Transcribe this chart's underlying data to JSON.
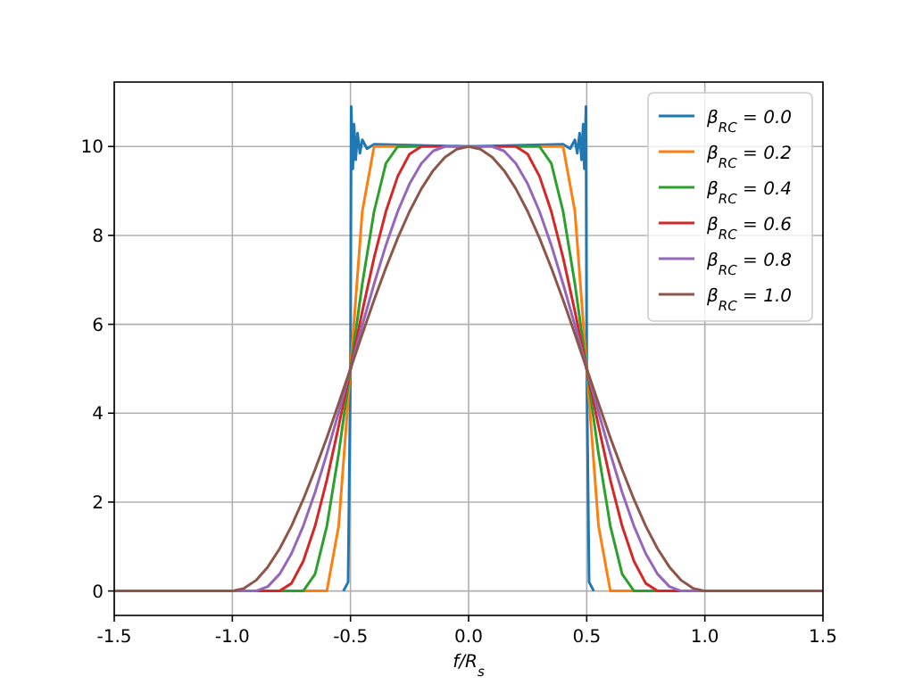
{
  "chart_data": {
    "type": "line",
    "xlabel": "f/R$_{s}$",
    "xlim": [
      -1.5,
      1.5
    ],
    "ylim": [
      -0.55,
      11.45
    ],
    "xticks": [
      -1.5,
      {
        "value": -1,
        "label": "-1.0"
      },
      -0.5,
      {
        "value": 0,
        "label": "0.0"
      },
      0.5,
      {
        "value": 1,
        "label": "1.0"
      },
      1.5
    ],
    "yticks": [
      0,
      2,
      4,
      6,
      8,
      10
    ],
    "grid": true,
    "legend": "top right",
    "line_style": "solid",
    "marker": "none",
    "x": [
      -1.5,
      -1.0,
      -0.95,
      -0.9,
      -0.85,
      -0.8,
      -0.75,
      -0.7,
      -0.65,
      -0.6,
      -0.55,
      -0.5,
      -0.45,
      -0.4,
      -0.35,
      -0.3,
      -0.25,
      -0.2,
      -0.15,
      -0.1,
      -0.05,
      0,
      0.05,
      0.1,
      0.15,
      0.2,
      0.25,
      0.3,
      0.35,
      0.4,
      0.45,
      0.5,
      0.55,
      0.6,
      0.65,
      0.7,
      0.75,
      0.8,
      0.85,
      0.9,
      0.95,
      1.0,
      1.5
    ],
    "series": [
      {
        "name": "β$_{RC}$ = 0.0",
        "color": "#1f77b4",
        "x": [
          -0.53,
          -0.51,
          -0.5,
          -0.497,
          -0.49,
          -0.485,
          -0.478,
          -0.47,
          -0.46,
          -0.45,
          -0.43,
          -0.4,
          0,
          0.4,
          0.43,
          0.45,
          0.46,
          0.47,
          0.478,
          0.485,
          0.49,
          0.497,
          0.5,
          0.51,
          0.53
        ],
        "values": [
          0,
          0.2,
          5,
          10.9,
          9.5,
          10.5,
          9.7,
          10.3,
          9.85,
          10.15,
          9.95,
          10.05,
          10,
          10.05,
          9.95,
          10.15,
          9.85,
          10.3,
          9.7,
          10.5,
          9.5,
          10.9,
          5,
          0.2,
          0
        ]
      },
      {
        "name": "β$_{RC}$ = 0.2",
        "color": "#ff7f0e",
        "values": [
          null,
          null,
          null,
          null,
          null,
          null,
          null,
          0,
          0,
          0,
          1.46,
          5,
          8.54,
          10,
          10,
          10,
          10,
          null,
          null,
          null,
          null,
          null,
          null,
          null,
          null,
          null,
          null,
          10,
          10,
          10,
          8.54,
          5,
          1.46,
          0,
          0,
          0,
          null,
          null,
          null,
          null,
          null,
          null,
          null
        ]
      },
      {
        "name": "β$_{RC}$ = 0.4",
        "color": "#2ca02c",
        "values": [
          null,
          null,
          null,
          null,
          null,
          0,
          0,
          0,
          0.38,
          1.46,
          3.09,
          5,
          6.91,
          8.54,
          9.62,
          10,
          10,
          10,
          null,
          null,
          null,
          null,
          null,
          null,
          null,
          10,
          10,
          10,
          9.62,
          8.54,
          6.91,
          5,
          3.09,
          1.46,
          0.38,
          0,
          0,
          0,
          null,
          null,
          null,
          null,
          null
        ]
      },
      {
        "name": "β$_{RC}$ = 0.6",
        "color": "#d62728",
        "values": [
          null,
          null,
          null,
          0,
          0,
          0,
          0.17,
          0.67,
          1.46,
          2.5,
          3.71,
          5,
          6.29,
          7.5,
          8.54,
          9.33,
          9.83,
          10,
          10,
          10,
          null,
          null,
          null,
          10,
          10,
          10,
          9.83,
          9.33,
          8.54,
          7.5,
          6.29,
          5,
          3.71,
          2.5,
          1.46,
          0.67,
          0.17,
          0,
          0,
          0,
          null,
          null,
          null
        ]
      },
      {
        "name": "β$_{RC}$ = 0.8",
        "color": "#9467bd",
        "values": [
          null,
          0,
          0,
          0,
          0.1,
          0.38,
          0.84,
          1.46,
          2.22,
          3.09,
          4.02,
          5,
          5.98,
          6.91,
          7.78,
          8.54,
          9.16,
          9.62,
          9.9,
          10,
          10,
          10,
          10,
          10,
          9.9,
          9.62,
          9.16,
          8.54,
          7.78,
          6.91,
          5.98,
          5,
          4.02,
          3.09,
          2.22,
          1.46,
          0.84,
          0.38,
          0.1,
          0,
          0,
          0,
          null
        ]
      },
      {
        "name": "β$_{RC}$ = 1.0",
        "color": "#8c564b",
        "values": [
          0,
          0,
          0.06,
          0.24,
          0.54,
          0.95,
          1.46,
          2.06,
          2.73,
          3.45,
          4.22,
          5,
          5.78,
          6.55,
          7.27,
          7.94,
          8.54,
          9.05,
          9.46,
          9.76,
          9.94,
          10,
          9.94,
          9.76,
          9.46,
          9.05,
          8.54,
          7.94,
          7.27,
          6.55,
          5.78,
          5,
          4.22,
          3.45,
          2.73,
          2.06,
          1.46,
          0.95,
          0.54,
          0.24,
          0.06,
          0,
          0
        ]
      }
    ]
  }
}
